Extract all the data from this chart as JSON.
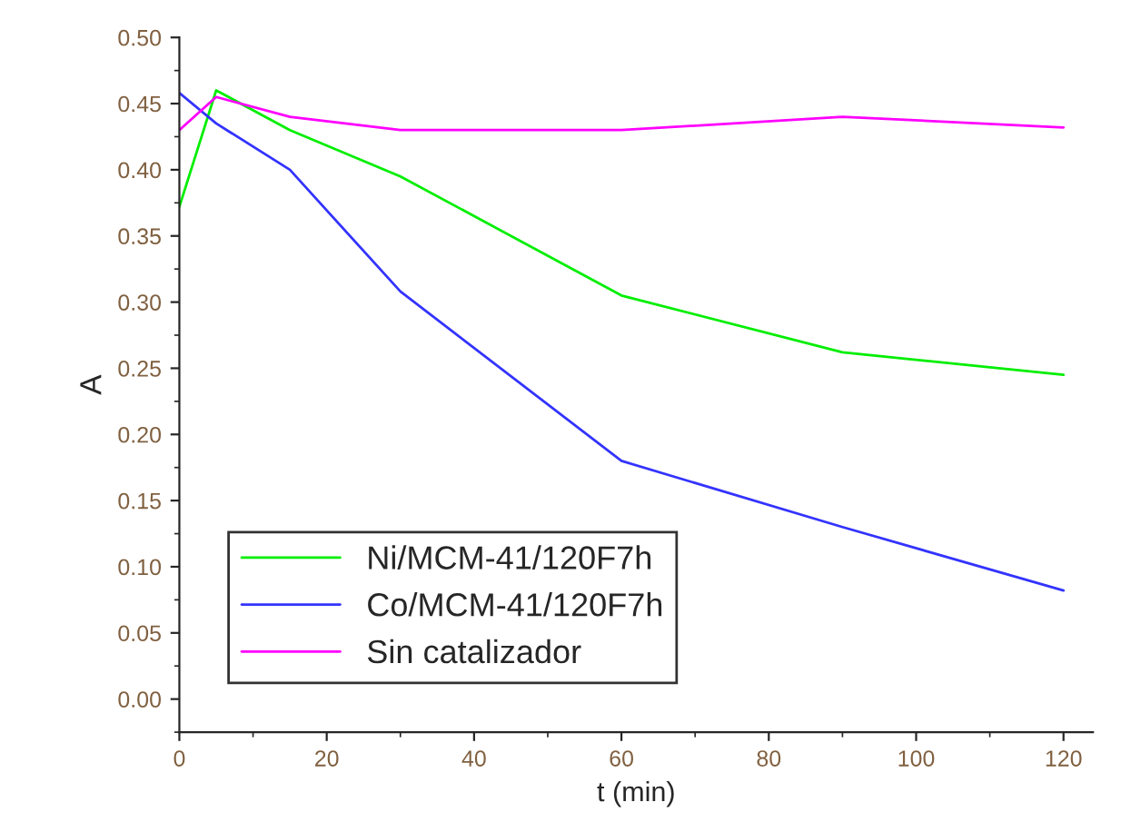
{
  "chart_data": {
    "type": "line",
    "xlabel": "t (min)",
    "ylabel": "A",
    "x": [
      0,
      5,
      15,
      30,
      60,
      90,
      120
    ],
    "series": [
      {
        "name": "Ni/MCM-41/120F7h",
        "color": "#00ee00",
        "values": [
          0.372,
          0.46,
          0.43,
          0.395,
          0.305,
          0.262,
          0.245
        ]
      },
      {
        "name": "Co/MCM-41/120F7h",
        "color": "#3333ff",
        "values": [
          0.458,
          0.435,
          0.4,
          0.308,
          0.18,
          0.13,
          0.082
        ]
      },
      {
        "name": "Sin catalizador",
        "color": "#ff00ff",
        "values": [
          0.43,
          0.455,
          0.44,
          0.43,
          0.43,
          0.44,
          0.432
        ]
      }
    ],
    "xlim": [
      0,
      124
    ],
    "ylim": [
      -0.025,
      0.5
    ],
    "xticks": [
      0,
      20,
      40,
      60,
      80,
      100,
      120
    ],
    "yticks": [
      {
        "value": 0.0,
        "label": "0.00"
      },
      {
        "value": 0.05,
        "label": "0.05"
      },
      {
        "value": 0.1,
        "label": "0.10"
      },
      {
        "value": 0.15,
        "label": "0.15"
      },
      {
        "value": 0.2,
        "label": "0.20"
      },
      {
        "value": 0.25,
        "label": "0.25"
      },
      {
        "value": 0.3,
        "label": "0.30"
      },
      {
        "value": 0.35,
        "label": "0.35"
      },
      {
        "value": 0.4,
        "label": "0.40"
      },
      {
        "value": 0.45,
        "label": "0.45"
      },
      {
        "value": 0.5,
        "label": "0.50"
      }
    ],
    "legend": "bottom left",
    "grid": false
  }
}
